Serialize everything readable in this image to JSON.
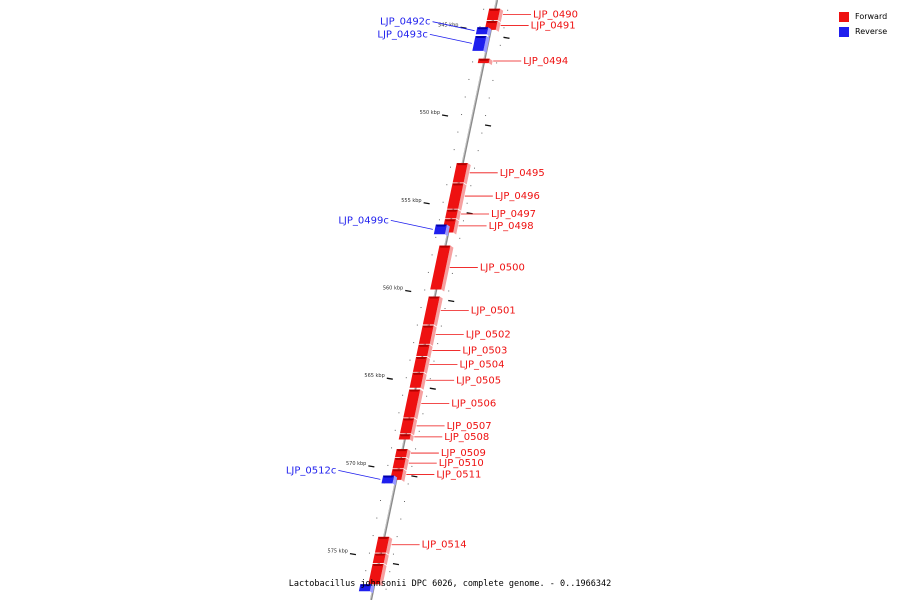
{
  "colors": {
    "forward": "#ee1111",
    "forward_dark": "#b30000",
    "reverse": "#1f1fee",
    "reverse_dark": "#0000a8",
    "backbone": "#8a8a8a"
  },
  "legend": [
    {
      "label": "Forward",
      "color": "#ee1111"
    },
    {
      "label": "Reverse",
      "color": "#1f1fee"
    }
  ],
  "caption": "Lactobacillus johnsonii DPC 6026, complete genome. - 0..1966342",
  "ticks": [
    {
      "label": "545 kbp",
      "kbp": 545
    },
    {
      "label": "550 kbp",
      "kbp": 550
    },
    {
      "label": "555 kbp",
      "kbp": 555
    },
    {
      "label": "560 kbp",
      "kbp": 560
    },
    {
      "label": "565 kbp",
      "kbp": 565
    },
    {
      "label": "570 kbp",
      "kbp": 570
    },
    {
      "label": "575 kbp",
      "kbp": 575
    }
  ],
  "genes": [
    {
      "name": "LJP_0490",
      "strand": "forward",
      "start_kbp": 544.0,
      "end_kbp": 544.65
    },
    {
      "name": "LJP_0491",
      "strand": "forward",
      "start_kbp": 544.7,
      "end_kbp": 545.2
    },
    {
      "name": "LJP_0492c",
      "strand": "reverse",
      "start_kbp": 545.05,
      "end_kbp": 545.45
    },
    {
      "name": "LJP_0493c",
      "strand": "reverse",
      "start_kbp": 545.55,
      "end_kbp": 546.4
    },
    {
      "name": "LJP_0494",
      "strand": "forward",
      "start_kbp": 546.85,
      "end_kbp": 547.1
    },
    {
      "name": "LJP_0495",
      "strand": "forward",
      "start_kbp": 552.8,
      "end_kbp": 553.9
    },
    {
      "name": "LJP_0496",
      "strand": "forward",
      "start_kbp": 553.95,
      "end_kbp": 555.4
    },
    {
      "name": "LJP_0497",
      "strand": "forward",
      "start_kbp": 555.45,
      "end_kbp": 555.95
    },
    {
      "name": "LJP_0498",
      "strand": "forward",
      "start_kbp": 556.0,
      "end_kbp": 556.75
    },
    {
      "name": "LJP_0499c",
      "strand": "reverse",
      "start_kbp": 556.3,
      "end_kbp": 556.85
    },
    {
      "name": "LJP_0500",
      "strand": "forward",
      "start_kbp": 557.5,
      "end_kbp": 560.0
    },
    {
      "name": "LJP_0501",
      "strand": "forward",
      "start_kbp": 560.4,
      "end_kbp": 562.0
    },
    {
      "name": "LJP_0502",
      "strand": "forward",
      "start_kbp": 562.05,
      "end_kbp": 563.1
    },
    {
      "name": "LJP_0503",
      "strand": "forward",
      "start_kbp": 563.15,
      "end_kbp": 563.8
    },
    {
      "name": "LJP_0504",
      "strand": "forward",
      "start_kbp": 563.85,
      "end_kbp": 564.7
    },
    {
      "name": "LJP_0505",
      "strand": "forward",
      "start_kbp": 564.75,
      "end_kbp": 565.6
    },
    {
      "name": "LJP_0506",
      "strand": "forward",
      "start_kbp": 565.7,
      "end_kbp": 567.3
    },
    {
      "name": "LJP_0507",
      "strand": "forward",
      "start_kbp": 567.35,
      "end_kbp": 568.2
    },
    {
      "name": "LJP_0508",
      "strand": "forward",
      "start_kbp": 568.25,
      "end_kbp": 568.55
    },
    {
      "name": "LJP_0509",
      "strand": "forward",
      "start_kbp": 569.1,
      "end_kbp": 569.55
    },
    {
      "name": "LJP_0510",
      "strand": "forward",
      "start_kbp": 569.6,
      "end_kbp": 570.2
    },
    {
      "name": "LJP_0511",
      "strand": "forward",
      "start_kbp": 570.25,
      "end_kbp": 570.85
    },
    {
      "name": "LJP_0512c",
      "strand": "reverse",
      "start_kbp": 570.6,
      "end_kbp": 571.05
    },
    {
      "name": "LJP_0514",
      "strand": "forward",
      "start_kbp": 574.1,
      "end_kbp": 575.0
    },
    {
      "name": "",
      "strand": "forward",
      "start_kbp": 575.05,
      "end_kbp": 575.6
    },
    {
      "name": "",
      "strand": "forward",
      "start_kbp": 575.65,
      "end_kbp": 576.8
    },
    {
      "name": "",
      "strand": "reverse",
      "start_kbp": 576.8,
      "end_kbp": 577.2
    }
  ]
}
